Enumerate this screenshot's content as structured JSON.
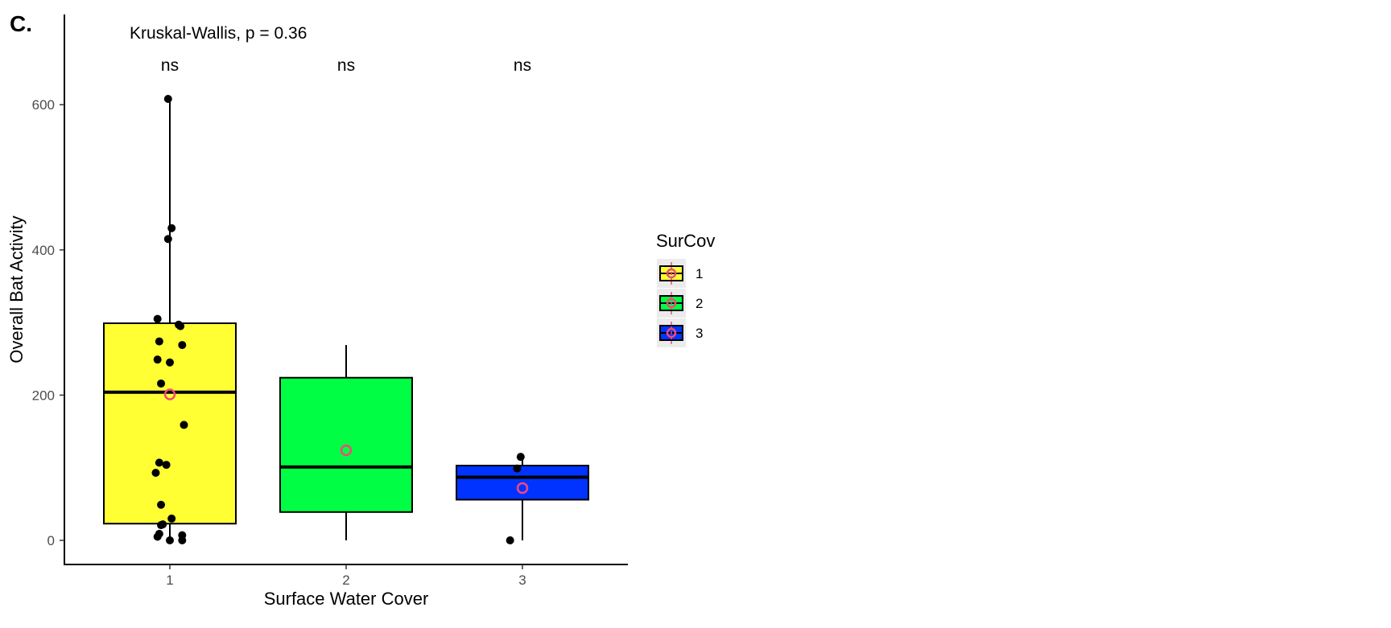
{
  "chart_data": {
    "type": "box",
    "panel_label": "C.",
    "test_annotation": "Kruskal-Wallis, p = 0.36",
    "xlabel": "Surface Water Cover",
    "ylabel": "Overall Bat Activity",
    "categories": [
      "1",
      "2",
      "3"
    ],
    "y_ticks": [
      0,
      200,
      400,
      600
    ],
    "ylim": [
      -34,
      718
    ],
    "significance_labels": [
      "ns",
      "ns",
      "ns"
    ],
    "legend": {
      "title": "SurCov",
      "position": "right",
      "labels": [
        "1",
        "2",
        "3"
      ]
    },
    "colors": {
      "1": "#FFFF33",
      "2": "#00FF44",
      "3": "#0033FF",
      "points": "#000000",
      "mean_marker": "#F0487F"
    },
    "grid": false,
    "boxes": [
      {
        "category": "1",
        "q1": 23,
        "median": 204,
        "q3": 299,
        "whisker_low": 0,
        "whisker_high": 608,
        "mean": 201
      },
      {
        "category": "2",
        "q1": 39,
        "median": 101,
        "q3": 224,
        "whisker_low": 0,
        "whisker_high": 269,
        "mean": 124
      },
      {
        "category": "3",
        "q1": 56,
        "median": 87,
        "q3": 103,
        "whisker_low": 0,
        "whisker_high": 115,
        "mean": 72
      }
    ],
    "points": {
      "1": [
        [
          0.99,
          608
        ],
        [
          1.01,
          430
        ],
        [
          0.99,
          415
        ],
        [
          0.93,
          305
        ],
        [
          1.05,
          297
        ],
        [
          1.06,
          295
        ],
        [
          0.94,
          274
        ],
        [
          0.93,
          249
        ],
        [
          1.08,
          159
        ],
        [
          0.98,
          104
        ],
        [
          1.01,
          30
        ],
        [
          0.96,
          22
        ],
        [
          0.95,
          21
        ],
        [
          1.07,
          7
        ],
        [
          0.93,
          5
        ],
        [
          1.0,
          0
        ]
      ],
      "2": [
        [
          1.07,
          269
        ],
        [
          1.0,
          245
        ],
        [
          0.95,
          216
        ],
        [
          0.94,
          107
        ],
        [
          0.92,
          93
        ],
        [
          0.95,
          49
        ],
        [
          0.94,
          9
        ],
        [
          1.07,
          0
        ]
      ],
      "3": [
        [
          2.99,
          115
        ],
        [
          2.97,
          99
        ],
        [
          2.93,
          0
        ]
      ]
    }
  }
}
